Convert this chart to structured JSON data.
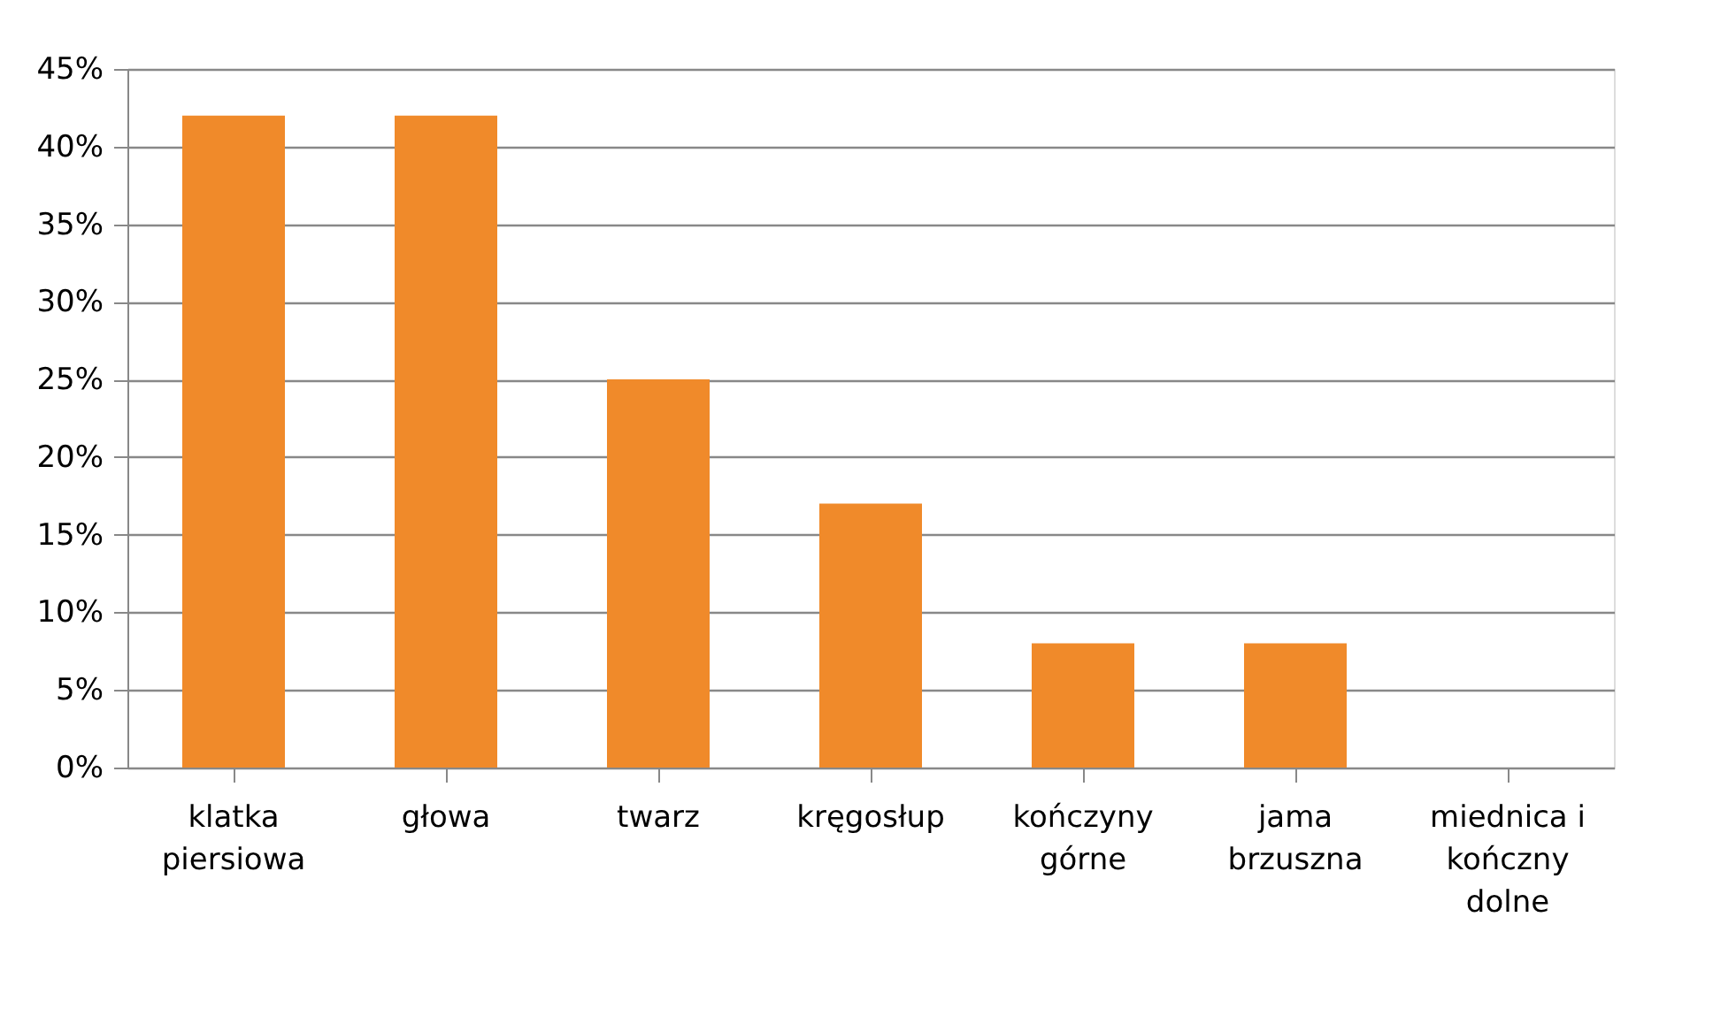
{
  "chart_data": {
    "type": "bar",
    "categories": [
      "klatka\npiersiowa",
      "głowa",
      "twarz",
      "kręgosłup",
      "kończyny\ngórne",
      "jama\nbrzuszna",
      "miednica i\nkończny\ndolne"
    ],
    "values": [
      42,
      42,
      25,
      17,
      8,
      8,
      0
    ],
    "color": "#f08a2a",
    "ylim": [
      0,
      45
    ],
    "yticks": [
      {
        "value": 0,
        "label": "0%"
      },
      {
        "value": 5,
        "label": "5%"
      },
      {
        "value": 10,
        "label": "10%"
      },
      {
        "value": 15,
        "label": "15%"
      },
      {
        "value": 20,
        "label": "20%"
      },
      {
        "value": 25,
        "label": "25%"
      },
      {
        "value": 30,
        "label": "30%"
      },
      {
        "value": 35,
        "label": "35%"
      },
      {
        "value": 40,
        "label": "40%"
      },
      {
        "value": 45,
        "label": "45%"
      }
    ],
    "grid": "y"
  }
}
